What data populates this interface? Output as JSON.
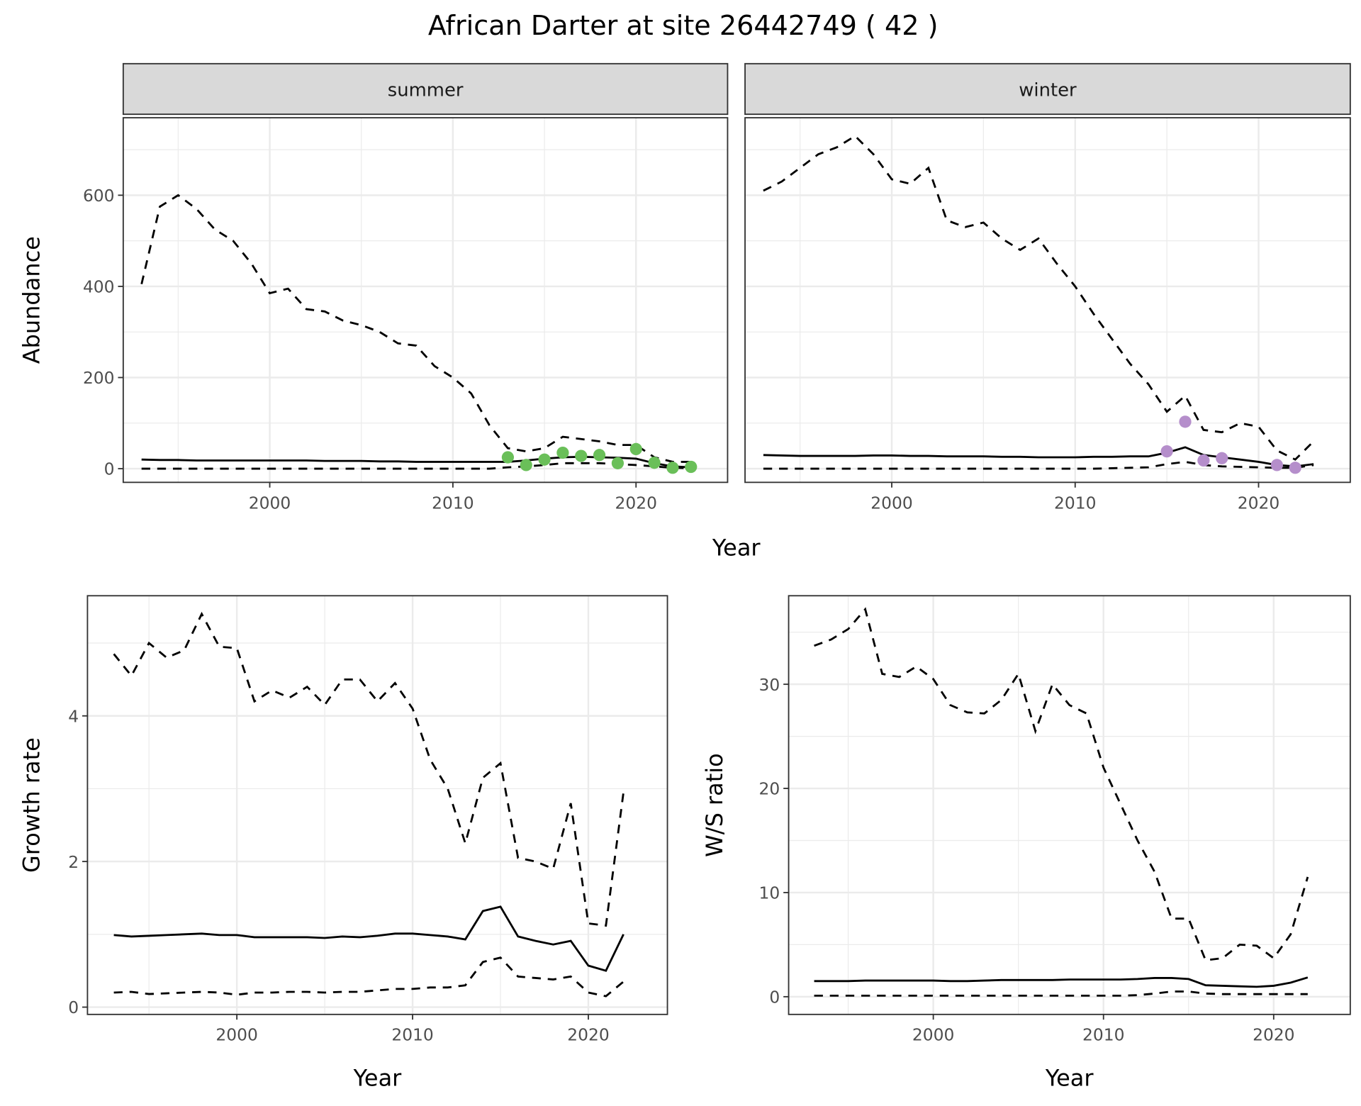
{
  "title": "African Darter at site 26442749 ( 42 )",
  "chart_data": [
    {
      "type": "line",
      "id": "abundance",
      "facets": [
        "summer",
        "winter"
      ],
      "xlabel": "Year",
      "ylabel": "Abundance",
      "xlim": [
        1992,
        2025
      ],
      "ylim": [
        -30,
        770
      ],
      "xticks": [
        2000,
        2010,
        2020
      ],
      "yticks": [
        0,
        200,
        400,
        600
      ],
      "years": [
        1993,
        1994,
        1995,
        1996,
        1997,
        1998,
        1999,
        2000,
        2001,
        2002,
        2003,
        2004,
        2005,
        2006,
        2007,
        2008,
        2009,
        2010,
        2011,
        2012,
        2013,
        2014,
        2015,
        2016,
        2017,
        2018,
        2019,
        2020,
        2021,
        2022,
        2023
      ],
      "panels": {
        "summer": {
          "upper": [
            405,
            575,
            600,
            570,
            525,
            500,
            450,
            385,
            395,
            350,
            345,
            325,
            315,
            300,
            275,
            270,
            225,
            200,
            165,
            95,
            45,
            38,
            45,
            70,
            65,
            60,
            52,
            52,
            25,
            15,
            15
          ],
          "mean": [
            20,
            19,
            19,
            18,
            18,
            18,
            18,
            18,
            18,
            18,
            17,
            17,
            17,
            16,
            16,
            15,
            15,
            15,
            15,
            15,
            15,
            18,
            22,
            25,
            26,
            25,
            24,
            22,
            12,
            5,
            3
          ],
          "lower": [
            0,
            0,
            0,
            0,
            0,
            0,
            0,
            0,
            0,
            0,
            0,
            0,
            0,
            0,
            0,
            0,
            0,
            0,
            0,
            0,
            3,
            5,
            8,
            12,
            12,
            12,
            10,
            8,
            5,
            2,
            1
          ],
          "points_color": "#6abf59",
          "points": [
            [
              2013,
              25
            ],
            [
              2014,
              8
            ],
            [
              2015,
              20
            ],
            [
              2016,
              35
            ],
            [
              2017,
              28
            ],
            [
              2018,
              30
            ],
            [
              2019,
              12
            ],
            [
              2020,
              43
            ],
            [
              2021,
              13
            ],
            [
              2022,
              2
            ],
            [
              2023,
              4
            ]
          ]
        },
        "winter": {
          "upper": [
            610,
            630,
            660,
            690,
            705,
            730,
            690,
            635,
            625,
            660,
            545,
            530,
            540,
            505,
            480,
            505,
            450,
            400,
            340,
            285,
            230,
            185,
            125,
            160,
            85,
            80,
            100,
            92,
            40,
            20,
            60
          ],
          "mean": [
            30,
            29,
            28,
            28,
            28,
            28,
            29,
            29,
            28,
            28,
            27,
            27,
            27,
            26,
            26,
            25,
            25,
            25,
            26,
            26,
            27,
            27,
            35,
            47,
            30,
            25,
            20,
            15,
            8,
            5,
            10
          ],
          "lower": [
            0,
            0,
            0,
            0,
            0,
            0,
            0,
            0,
            0,
            0,
            0,
            0,
            0,
            0,
            0,
            0,
            0,
            0,
            0,
            1,
            2,
            3,
            10,
            15,
            8,
            5,
            4,
            3,
            2,
            2,
            8
          ],
          "points_color": "#b58ecb",
          "points": [
            [
              2015,
              38
            ],
            [
              2016,
              103
            ],
            [
              2017,
              18
            ],
            [
              2018,
              23
            ],
            [
              2021,
              8
            ],
            [
              2022,
              2
            ]
          ]
        }
      }
    },
    {
      "type": "line",
      "id": "growth",
      "xlabel": "Year",
      "ylabel": "Growth rate",
      "xlim": [
        1991.5,
        2024.5
      ],
      "ylim": [
        -0.1,
        5.65
      ],
      "xticks": [
        2000,
        2010,
        2020
      ],
      "yticks": [
        0,
        2,
        4
      ],
      "years": [
        1993,
        1994,
        1995,
        1996,
        1997,
        1998,
        1999,
        2000,
        2001,
        2002,
        2003,
        2004,
        2005,
        2006,
        2007,
        2008,
        2009,
        2010,
        2011,
        2012,
        2013,
        2014,
        2015,
        2016,
        2017,
        2018,
        2019,
        2020,
        2021,
        2022
      ],
      "upper": [
        4.85,
        4.55,
        5.0,
        4.8,
        4.9,
        5.4,
        4.95,
        4.93,
        4.2,
        4.35,
        4.25,
        4.4,
        4.15,
        4.5,
        4.5,
        4.2,
        4.45,
        4.1,
        3.4,
        3.0,
        2.25,
        3.15,
        3.35,
        2.05,
        2.0,
        1.9,
        2.8,
        1.15,
        1.12,
        2.95
      ],
      "mean": [
        0.99,
        0.97,
        0.98,
        0.99,
        1.0,
        1.01,
        0.99,
        0.99,
        0.96,
        0.96,
        0.96,
        0.96,
        0.95,
        0.97,
        0.96,
        0.98,
        1.01,
        1.01,
        0.99,
        0.97,
        0.93,
        1.32,
        1.38,
        0.97,
        0.91,
        0.86,
        0.91,
        0.57,
        0.5,
        1.0
      ],
      "lower": [
        0.2,
        0.21,
        0.18,
        0.19,
        0.2,
        0.21,
        0.2,
        0.17,
        0.2,
        0.2,
        0.21,
        0.21,
        0.2,
        0.21,
        0.21,
        0.23,
        0.25,
        0.25,
        0.27,
        0.27,
        0.3,
        0.62,
        0.68,
        0.42,
        0.4,
        0.38,
        0.42,
        0.2,
        0.15,
        0.35
      ]
    },
    {
      "type": "line",
      "id": "ws",
      "xlabel": "Year",
      "ylabel": "W/S ratio",
      "xlim": [
        1991.5,
        2024.5
      ],
      "ylim": [
        -1.7,
        38.5
      ],
      "xticks": [
        2000,
        2010,
        2020
      ],
      "yticks": [
        0,
        10,
        20,
        30
      ],
      "years": [
        1993,
        1994,
        1995,
        1996,
        1997,
        1998,
        1999,
        2000,
        2001,
        2002,
        2003,
        2004,
        2005,
        2006,
        2007,
        2008,
        2009,
        2010,
        2011,
        2012,
        2013,
        2014,
        2015,
        2016,
        2017,
        2018,
        2019,
        2020,
        2021,
        2022
      ],
      "upper": [
        33.7,
        34.3,
        35.3,
        37.2,
        31.0,
        30.7,
        31.7,
        30.5,
        28.0,
        27.3,
        27.2,
        28.5,
        31.0,
        25.5,
        30.0,
        28.0,
        27.2,
        22.0,
        18.5,
        15.0,
        12.0,
        7.5,
        7.5,
        3.5,
        3.7,
        5.0,
        4.9,
        3.7,
        6.0,
        11.5
      ],
      "mean": [
        1.5,
        1.5,
        1.5,
        1.55,
        1.55,
        1.55,
        1.55,
        1.55,
        1.5,
        1.5,
        1.55,
        1.6,
        1.6,
        1.6,
        1.6,
        1.65,
        1.65,
        1.65,
        1.65,
        1.7,
        1.8,
        1.8,
        1.7,
        1.1,
        1.05,
        1.0,
        0.95,
        1.05,
        1.35,
        1.85
      ],
      "lower": [
        0.1,
        0.1,
        0.1,
        0.1,
        0.1,
        0.1,
        0.1,
        0.1,
        0.1,
        0.1,
        0.1,
        0.1,
        0.1,
        0.1,
        0.1,
        0.1,
        0.1,
        0.1,
        0.1,
        0.15,
        0.3,
        0.5,
        0.5,
        0.3,
        0.25,
        0.25,
        0.25,
        0.25,
        0.25,
        0.25
      ]
    }
  ]
}
